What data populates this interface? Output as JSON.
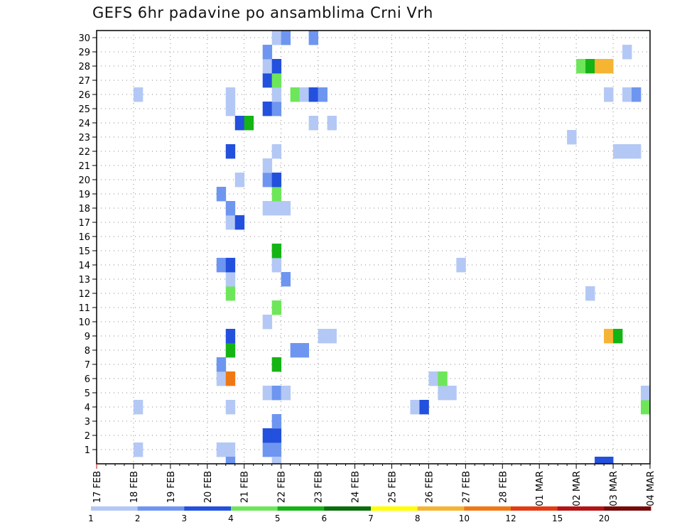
{
  "chart_data": {
    "type": "heatmap",
    "title": "GEFS 6hr padavine po ansamblima Crni Vrh",
    "xlabel": "",
    "ylabel": "",
    "x_tick_labels": [
      "17 FEB",
      "18 FEB",
      "19 FEB",
      "20 FEB",
      "21 FEB",
      "22 FEB",
      "23 FEB",
      "24 FEB",
      "25 FEB",
      "26 FEB",
      "27 FEB",
      "28 FEB",
      "01 MAR",
      "02 MAR",
      "03 MAR",
      "04 MAR"
    ],
    "y_tick_labels": [
      "1",
      "2",
      "3",
      "4",
      "5",
      "6",
      "7",
      "8",
      "9",
      "10",
      "11",
      "12",
      "13",
      "14",
      "15",
      "16",
      "17",
      "18",
      "19",
      "20",
      "21",
      "22",
      "23",
      "24",
      "25",
      "26",
      "27",
      "28",
      "29",
      "30"
    ],
    "x_axis": "time in 6-hour steps from 17 FEB 00Z (4 steps per day)",
    "y_axis": "ensemble member",
    "xlim_steps": [
      0,
      60
    ],
    "ylim_members": [
      0,
      30
    ],
    "grid": "dotted",
    "legend_position": "bottom",
    "legend": {
      "boundaries": [
        "1",
        "2",
        "3",
        "4",
        "5",
        "6",
        "7",
        "8",
        "10",
        "12",
        "15",
        "20",
        ""
      ],
      "colors": [
        "#b4c8f5",
        "#6e96f0",
        "#2350dc",
        "#6ee65a",
        "#14b414",
        "#0a6e0a",
        "#ffff00",
        "#f5b432",
        "#f07814",
        "#e13c14",
        "#b41414",
        "#780a0a"
      ]
    },
    "cells": [
      {
        "t": 4,
        "m": 1,
        "c": 1
      },
      {
        "t": 13,
        "m": 1,
        "c": 1
      },
      {
        "t": 14,
        "m": 1,
        "c": 1
      },
      {
        "t": 18,
        "m": 1,
        "c": 2
      },
      {
        "t": 19,
        "m": 1,
        "c": 2
      },
      {
        "t": 18,
        "m": 2,
        "c": 3
      },
      {
        "t": 19,
        "m": 2,
        "c": 3
      },
      {
        "t": 19,
        "m": 3,
        "c": 2
      },
      {
        "t": 4,
        "m": 4,
        "c": 1
      },
      {
        "t": 14,
        "m": 4,
        "c": 1
      },
      {
        "t": 34,
        "m": 4,
        "c": 1
      },
      {
        "t": 35,
        "m": 4,
        "c": 3
      },
      {
        "t": 59,
        "m": 4,
        "c": 4
      },
      {
        "t": 18,
        "m": 5,
        "c": 1
      },
      {
        "t": 19,
        "m": 5,
        "c": 2
      },
      {
        "t": 20,
        "m": 5,
        "c": 1
      },
      {
        "t": 37,
        "m": 5,
        "c": 1
      },
      {
        "t": 38,
        "m": 5,
        "c": 1
      },
      {
        "t": 13,
        "m": 6,
        "c": 1
      },
      {
        "t": 14,
        "m": 6,
        "c": 9
      },
      {
        "t": 36,
        "m": 6,
        "c": 1
      },
      {
        "t": 37,
        "m": 6,
        "c": 4
      },
      {
        "t": 13,
        "m": 7,
        "c": 2
      },
      {
        "t": 19,
        "m": 7,
        "c": 5
      },
      {
        "t": 14,
        "m": 8,
        "c": 5
      },
      {
        "t": 21,
        "m": 8,
        "c": 2
      },
      {
        "t": 22,
        "m": 8,
        "c": 2
      },
      {
        "t": 14,
        "m": 9,
        "c": 3
      },
      {
        "t": 24,
        "m": 9,
        "c": 1
      },
      {
        "t": 25,
        "m": 9,
        "c": 1
      },
      {
        "t": 55,
        "m": 9,
        "c": 8
      },
      {
        "t": 56,
        "m": 9,
        "c": 5
      },
      {
        "t": 18,
        "m": 10,
        "c": 1
      },
      {
        "t": 19,
        "m": 11,
        "c": 4
      },
      {
        "t": 14,
        "m": 12,
        "c": 4
      },
      {
        "t": 53,
        "m": 12,
        "c": 1
      },
      {
        "t": 14,
        "m": 13,
        "c": 1
      },
      {
        "t": 20,
        "m": 13,
        "c": 2
      },
      {
        "t": 13,
        "m": 14,
        "c": 2
      },
      {
        "t": 14,
        "m": 14,
        "c": 3
      },
      {
        "t": 19,
        "m": 14,
        "c": 1
      },
      {
        "t": 39,
        "m": 14,
        "c": 1
      },
      {
        "t": 19,
        "m": 15,
        "c": 5
      },
      {
        "t": 14,
        "m": 17,
        "c": 1
      },
      {
        "t": 15,
        "m": 17,
        "c": 3
      },
      {
        "t": 14,
        "m": 18,
        "c": 2
      },
      {
        "t": 18,
        "m": 18,
        "c": 1
      },
      {
        "t": 19,
        "m": 18,
        "c": 1
      },
      {
        "t": 20,
        "m": 18,
        "c": 1
      },
      {
        "t": 13,
        "m": 19,
        "c": 2
      },
      {
        "t": 19,
        "m": 19,
        "c": 4
      },
      {
        "t": 15,
        "m": 20,
        "c": 1
      },
      {
        "t": 18,
        "m": 20,
        "c": 2
      },
      {
        "t": 19,
        "m": 20,
        "c": 3
      },
      {
        "t": 18,
        "m": 21,
        "c": 1
      },
      {
        "t": 14,
        "m": 22,
        "c": 3
      },
      {
        "t": 19,
        "m": 22,
        "c": 1
      },
      {
        "t": 56,
        "m": 22,
        "c": 1
      },
      {
        "t": 57,
        "m": 22,
        "c": 1
      },
      {
        "t": 58,
        "m": 22,
        "c": 1
      },
      {
        "t": 51,
        "m": 23,
        "c": 1
      },
      {
        "t": 15,
        "m": 24,
        "c": 3
      },
      {
        "t": 16,
        "m": 24,
        "c": 5
      },
      {
        "t": 23,
        "m": 24,
        "c": 1
      },
      {
        "t": 25,
        "m": 24,
        "c": 1
      },
      {
        "t": 14,
        "m": 25,
        "c": 1
      },
      {
        "t": 18,
        "m": 25,
        "c": 3
      },
      {
        "t": 19,
        "m": 25,
        "c": 2
      },
      {
        "t": 4,
        "m": 26,
        "c": 1
      },
      {
        "t": 14,
        "m": 26,
        "c": 1
      },
      {
        "t": 19,
        "m": 26,
        "c": 1
      },
      {
        "t": 21,
        "m": 26,
        "c": 4
      },
      {
        "t": 22,
        "m": 26,
        "c": 1
      },
      {
        "t": 23,
        "m": 26,
        "c": 3
      },
      {
        "t": 24,
        "m": 26,
        "c": 2
      },
      {
        "t": 55,
        "m": 26,
        "c": 1
      },
      {
        "t": 57,
        "m": 26,
        "c": 1
      },
      {
        "t": 58,
        "m": 26,
        "c": 2
      },
      {
        "t": 18,
        "m": 27,
        "c": 3
      },
      {
        "t": 19,
        "m": 27,
        "c": 4
      },
      {
        "t": 18,
        "m": 28,
        "c": 1
      },
      {
        "t": 19,
        "m": 28,
        "c": 3
      },
      {
        "t": 52,
        "m": 28,
        "c": 4
      },
      {
        "t": 53,
        "m": 28,
        "c": 5
      },
      {
        "t": 54,
        "m": 28,
        "c": 8
      },
      {
        "t": 55,
        "m": 28,
        "c": 8
      },
      {
        "t": 18,
        "m": 29,
        "c": 2
      },
      {
        "t": 57,
        "m": 29,
        "c": 1
      },
      {
        "t": 19,
        "m": 30,
        "c": 1
      },
      {
        "t": 20,
        "m": 30,
        "c": 2
      },
      {
        "t": 23,
        "m": 30,
        "c": 2
      },
      {
        "t": 14,
        "m": 0,
        "c": 2
      },
      {
        "t": 19,
        "m": 0,
        "c": 1
      },
      {
        "t": 54,
        "m": 0,
        "c": 3
      },
      {
        "t": 55,
        "m": 0,
        "c": 3
      },
      {
        "t": 59,
        "m": 5,
        "c": 1
      }
    ]
  }
}
